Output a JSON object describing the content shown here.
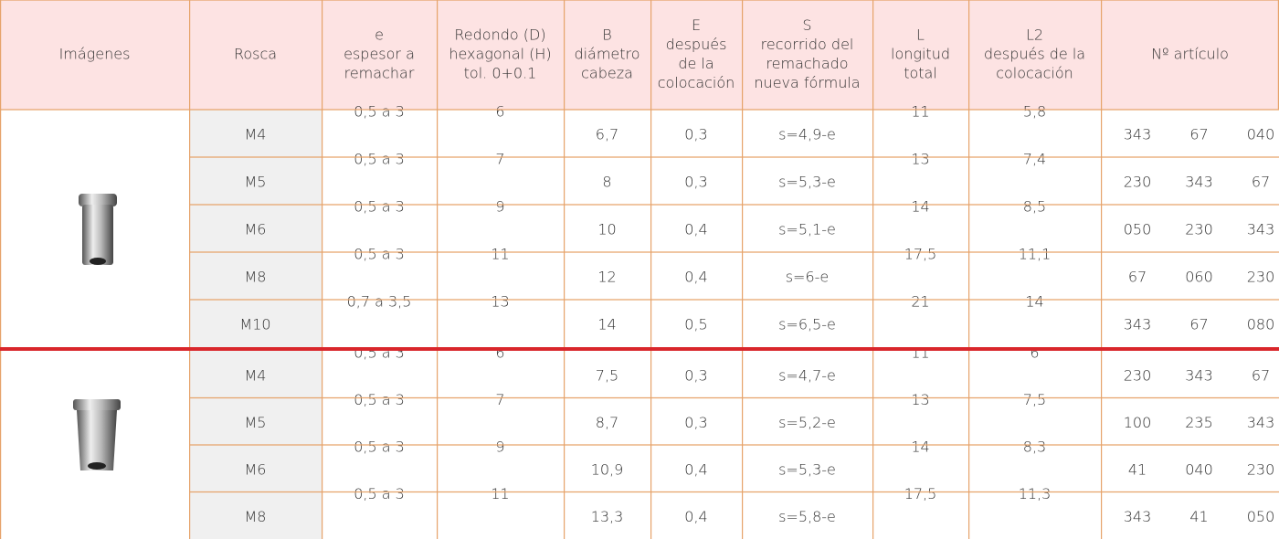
{
  "header": [
    [
      "Imágenes"
    ],
    [
      "Rosca"
    ],
    [
      "e",
      "espesor a",
      "remachar"
    ],
    [
      "Redondo (D)",
      "hexagonal (H)",
      "tol. 0+0.1"
    ],
    [
      "B",
      "diámetro",
      "cabeza"
    ],
    [
      "E",
      "después",
      "de la",
      "colocación"
    ],
    [
      "S",
      "recorrido del",
      "remachado",
      "nueva fórmula"
    ],
    [
      "L",
      "longitud",
      "total"
    ],
    [
      "L2",
      "después de la",
      "colocación"
    ],
    [
      "Nº artículo"
    ]
  ],
  "groups": [
    {
      "rows": [
        [
          "M4",
          "0,5 a 3",
          "6",
          "6,7",
          "0,3",
          "s=4,9-e",
          "11",
          "5,8",
          [
            "343",
            "67",
            "040"
          ]
        ],
        [
          "M5",
          "0,5 a 3",
          "7",
          "8",
          "0,3",
          "s=5,3-e",
          "13",
          "7,4",
          [
            "230",
            "343",
            "67"
          ]
        ],
        [
          "M6",
          "0,5 a 3",
          "9",
          "10",
          "0,4",
          "s=5,1-e",
          "14",
          "8,5",
          [
            "050",
            "230",
            "343"
          ]
        ],
        [
          "M8",
          "0,5 a 3",
          "11",
          "12",
          "0,4",
          "s=6-e",
          "17,5",
          "11,1",
          [
            "67",
            "060",
            "230"
          ]
        ],
        [
          "M10",
          "0,7 a 3,5",
          "13",
          "14",
          "0,5",
          "s=6,5-e",
          "21",
          "14",
          [
            "343",
            "67",
            "080"
          ]
        ]
      ]
    },
    {
      "rows": [
        [
          "M4",
          "0,5 a 3",
          "6",
          "7,5",
          "0,3",
          "s=4,7-e",
          "11",
          "6",
          [
            "230",
            "343",
            "67"
          ]
        ],
        [
          "M5",
          "0,5 a 3",
          "7",
          "8,7",
          "0,3",
          "s=5,2-e",
          "13",
          "7,5",
          [
            "100",
            "235",
            "343"
          ]
        ],
        [
          "M6",
          "0,5 a 3",
          "9",
          "10,9",
          "0,4",
          "s=5,3-e",
          "14",
          "8,3",
          [
            "41",
            "040",
            "230"
          ]
        ],
        [
          "M8",
          "0,5 a 3",
          "11",
          "13,3",
          "0,4",
          "s=5,8-e",
          "17,5",
          "11,3",
          [
            "343",
            "41",
            "050"
          ]
        ]
      ]
    }
  ]
}
